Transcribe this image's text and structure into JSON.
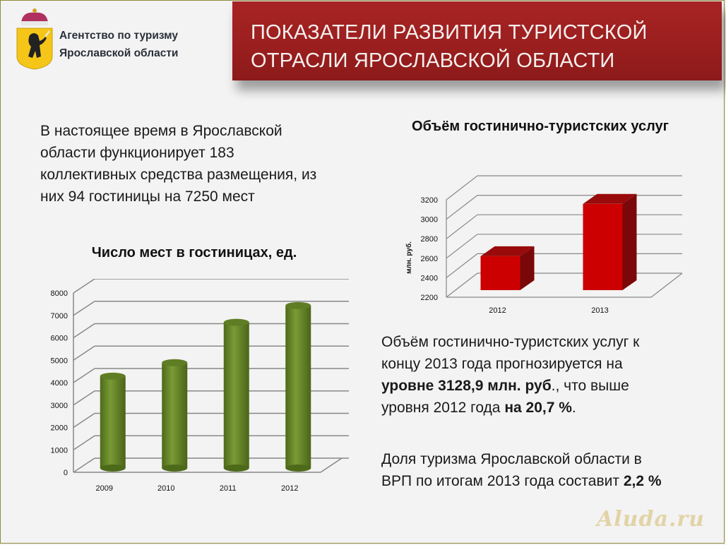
{
  "header": {
    "agency_line1": "Агентство  по туризму",
    "agency_line2": "Ярославской области",
    "title_line1": "ПОКАЗАТЕЛИ РАЗВИТИЯ ТУРИСТСКОЙ",
    "title_line2": "ОТРАСЛИ ЯРОСЛАВСКОЙ ОБЛАСТИ",
    "title_bg": "#9a1e1e",
    "logo_icon": "yaroslavl-coat-of-arms-icon"
  },
  "intro": {
    "line1": "В настоящее время в Ярославской",
    "line2": "области функционирует 183",
    "line3": "коллективных средства размещения, из",
    "line4": "них 94 гостиницы на 7250 мест"
  },
  "forecast": {
    "line1": "Объём гостинично-туристских услуг к",
    "line2": "концу 2013 года прогнозируется на",
    "line3_bold": "уровне 3128,9 млн. руб",
    "line3_rest": "., что выше",
    "line4_start": "уровня 2012 года ",
    "line4_bold": "на 20,7 %",
    "line4_end": "."
  },
  "share": {
    "line1": "Доля туризма Ярославской области в",
    "line2_start": "ВРП по итогам 2013 года составит ",
    "line2_bold": "2,2 %"
  },
  "watermark": "Aluda.ru",
  "chart_data": [
    {
      "type": "bar",
      "style": "3d-cylinder",
      "title": "Число мест в гостиницах, ед.",
      "categories": [
        "2009",
        "2010",
        "2011",
        "2012"
      ],
      "values": [
        4100,
        4700,
        6500,
        7250
      ],
      "xlabel": "",
      "ylabel": "",
      "ylim": [
        0,
        8000
      ],
      "yticks": [
        "0",
        "1000",
        "2000",
        "3000",
        "4000",
        "5000",
        "6000",
        "7000",
        "8000"
      ],
      "grid": true,
      "color": "#6b8a2a"
    },
    {
      "type": "bar",
      "style": "3d-box",
      "title": "Объём гостинично-туристских услуг",
      "categories": [
        "2012",
        "2013"
      ],
      "values": [
        2592,
        3128.9
      ],
      "xlabel": "",
      "ylabel": "млн. руб.",
      "ylim": [
        2200,
        3200
      ],
      "yticks": [
        "2200",
        "2400",
        "2600",
        "2800",
        "3000",
        "3200"
      ],
      "grid": true,
      "color": "#cc0000"
    }
  ]
}
